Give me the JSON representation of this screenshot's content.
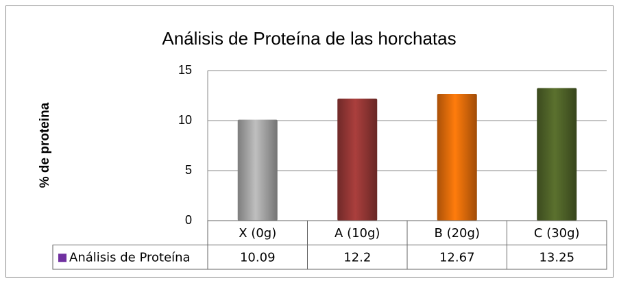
{
  "chart_data": {
    "type": "bar",
    "title": "Análisis de Proteína de las horchatas",
    "y_label": "% de proteina",
    "categories": [
      "X (0g)",
      "A (10g)",
      "B (20g)",
      "C (30g)"
    ],
    "series": [
      {
        "name": "Análisis de Proteína",
        "color": "#7030a0",
        "values": [
          10.09,
          12.2,
          12.67,
          13.25
        ]
      }
    ],
    "bar_colors": [
      "#a6a6a6",
      "#953735",
      "#e46c0a",
      "#4f6228"
    ],
    "ylim": [
      0,
      15
    ],
    "yticks": [
      0,
      5,
      10,
      15
    ],
    "grid": true,
    "data_table": true
  }
}
